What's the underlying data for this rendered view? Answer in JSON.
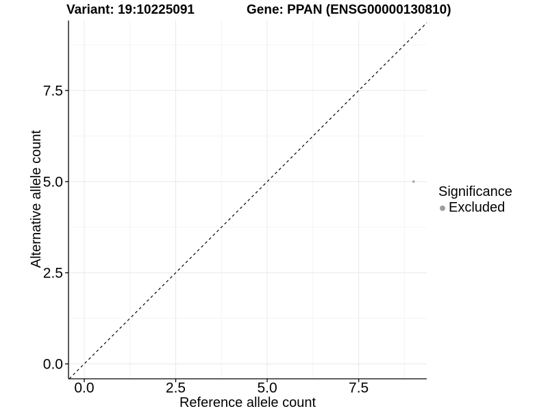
{
  "header": {
    "variant_title": "Variant: 19:10225091",
    "gene_title": "Gene: PPAN (ENSG00000130810)"
  },
  "axes": {
    "x": {
      "label": "Reference allele count"
    },
    "y": {
      "label": "Alternative allele count"
    }
  },
  "legend": {
    "title": "Significance",
    "items": [
      {
        "label": "Excluded",
        "color": "#9e9e9e"
      }
    ]
  },
  "chart_data": {
    "type": "scatter",
    "title": "Variant: 19:10225091 / Gene: PPAN (ENSG00000130810)",
    "xlabel": "Reference allele count",
    "ylabel": "Alternative allele count",
    "xlim": [
      -0.43,
      9.36
    ],
    "ylim": [
      -0.41,
      9.42
    ],
    "x_tick_values": [
      0,
      2.5,
      5,
      7.5
    ],
    "x_tick_labels": [
      "0.0",
      "2.5",
      "5.0",
      "7.5"
    ],
    "y_tick_values": [
      0,
      2.5,
      5,
      7.5
    ],
    "y_tick_labels": [
      "0.0",
      "2.5",
      "5.0",
      "7.5"
    ],
    "x_minor": [
      1.25,
      3.75,
      6.25,
      8.75
    ],
    "y_minor": [
      1.25,
      3.75,
      6.25,
      8.75
    ],
    "grid": "major+minor",
    "legend_position": "right",
    "reference_line": {
      "kind": "y=x",
      "style": "dashed",
      "color": "#000000"
    },
    "series": [
      {
        "name": "Excluded",
        "color": "#adadad",
        "point_radius": 1.9,
        "points": [
          {
            "x": 9,
            "y": 5
          }
        ]
      }
    ],
    "colors": {
      "grid_major": "#e8e8e8",
      "grid_minor": "#f4f4f4",
      "axis": "#000000",
      "tick_text": "#000000"
    }
  }
}
